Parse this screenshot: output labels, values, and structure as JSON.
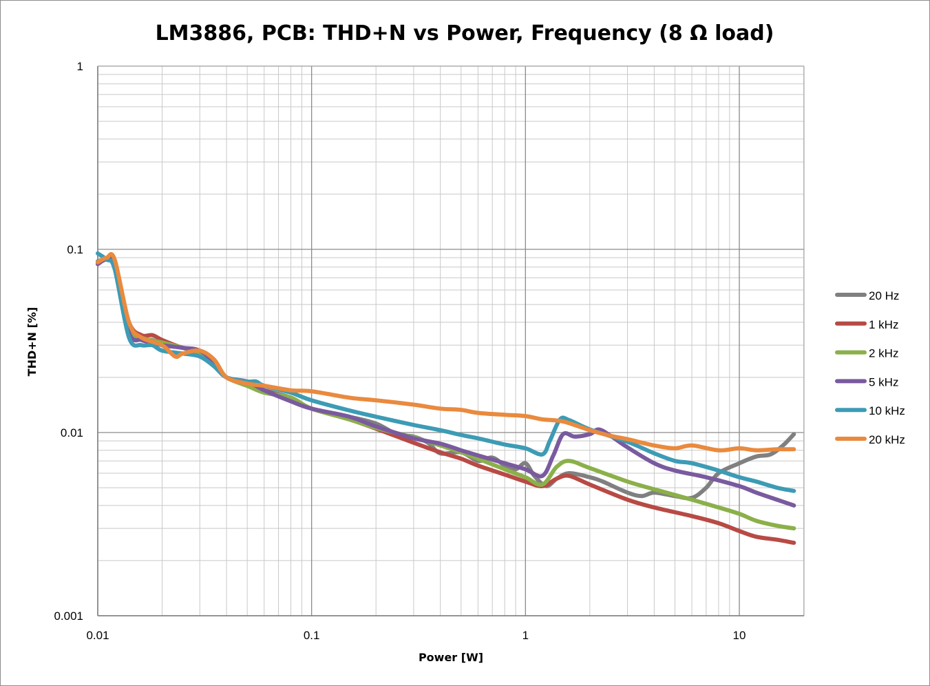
{
  "chart_data": {
    "type": "line",
    "title": "LM3886, PCB: THD+N vs Power, Frequency (8 Ω load)",
    "xlabel": "Power [W]",
    "ylabel": "THD+N [%]",
    "x_scale": "log",
    "y_scale": "log",
    "xlim": [
      0.01,
      20
    ],
    "ylim": [
      0.001,
      1
    ],
    "x_ticks": [
      "0.01",
      "0.1",
      "1",
      "10"
    ],
    "y_ticks": [
      "1",
      "0.1",
      "0.01",
      "0.001"
    ],
    "grid": true,
    "legend_position": "right",
    "series": [
      {
        "name": "20 Hz",
        "color": "#808080",
        "points": [
          [
            0.01,
            0.086
          ],
          [
            0.011,
            0.088
          ],
          [
            0.012,
            0.08
          ],
          [
            0.014,
            0.037
          ],
          [
            0.016,
            0.032
          ],
          [
            0.018,
            0.032
          ],
          [
            0.02,
            0.03
          ],
          [
            0.025,
            0.029
          ],
          [
            0.03,
            0.027
          ],
          [
            0.035,
            0.023
          ],
          [
            0.04,
            0.02
          ],
          [
            0.05,
            0.018
          ],
          [
            0.06,
            0.017
          ],
          [
            0.08,
            0.0155
          ],
          [
            0.1,
            0.0135
          ],
          [
            0.15,
            0.0122
          ],
          [
            0.2,
            0.0112
          ],
          [
            0.25,
            0.0098
          ],
          [
            0.3,
            0.0095
          ],
          [
            0.35,
            0.0088
          ],
          [
            0.4,
            0.0077
          ],
          [
            0.5,
            0.0078
          ],
          [
            0.6,
            0.007
          ],
          [
            0.7,
            0.0073
          ],
          [
            0.8,
            0.0066
          ],
          [
            0.9,
            0.0063
          ],
          [
            1.0,
            0.0068
          ],
          [
            1.1,
            0.0058
          ],
          [
            1.25,
            0.0051
          ],
          [
            1.4,
            0.0056
          ],
          [
            1.6,
            0.006
          ],
          [
            2.0,
            0.0057
          ],
          [
            2.3,
            0.0054
          ],
          [
            3.0,
            0.0047
          ],
          [
            3.5,
            0.0045
          ],
          [
            4.0,
            0.0047
          ],
          [
            5.0,
            0.0045
          ],
          [
            6.0,
            0.0044
          ],
          [
            7.0,
            0.005
          ],
          [
            8.0,
            0.006
          ],
          [
            10.0,
            0.0068
          ],
          [
            12.0,
            0.0074
          ],
          [
            14.0,
            0.0076
          ],
          [
            16.0,
            0.0085
          ],
          [
            18.0,
            0.0098
          ]
        ]
      },
      {
        "name": "1 kHz",
        "color": "#b84a44",
        "points": [
          [
            0.01,
            0.084
          ],
          [
            0.011,
            0.088
          ],
          [
            0.012,
            0.082
          ],
          [
            0.014,
            0.04
          ],
          [
            0.016,
            0.034
          ],
          [
            0.018,
            0.034
          ],
          [
            0.02,
            0.032
          ],
          [
            0.025,
            0.029
          ],
          [
            0.03,
            0.028
          ],
          [
            0.035,
            0.025
          ],
          [
            0.04,
            0.02
          ],
          [
            0.05,
            0.0185
          ],
          [
            0.06,
            0.017
          ],
          [
            0.08,
            0.015
          ],
          [
            0.1,
            0.0135
          ],
          [
            0.15,
            0.0118
          ],
          [
            0.2,
            0.0105
          ],
          [
            0.3,
            0.0088
          ],
          [
            0.4,
            0.0078
          ],
          [
            0.5,
            0.0072
          ],
          [
            0.6,
            0.0066
          ],
          [
            0.8,
            0.0059
          ],
          [
            1.0,
            0.0054
          ],
          [
            1.2,
            0.0051
          ],
          [
            1.4,
            0.0056
          ],
          [
            1.6,
            0.0058
          ],
          [
            2.0,
            0.0052
          ],
          [
            3.0,
            0.0043
          ],
          [
            4.0,
            0.0039
          ],
          [
            6.0,
            0.0035
          ],
          [
            8.0,
            0.0032
          ],
          [
            10.0,
            0.0029
          ],
          [
            12.0,
            0.0027
          ],
          [
            15.0,
            0.0026
          ],
          [
            18.0,
            0.0025
          ]
        ]
      },
      {
        "name": "2 kHz",
        "color": "#8bb04a",
        "points": [
          [
            0.01,
            0.085
          ],
          [
            0.011,
            0.088
          ],
          [
            0.012,
            0.08
          ],
          [
            0.014,
            0.038
          ],
          [
            0.016,
            0.033
          ],
          [
            0.02,
            0.031
          ],
          [
            0.025,
            0.029
          ],
          [
            0.03,
            0.027
          ],
          [
            0.035,
            0.024
          ],
          [
            0.04,
            0.02
          ],
          [
            0.05,
            0.018
          ],
          [
            0.06,
            0.0165
          ],
          [
            0.08,
            0.0155
          ],
          [
            0.1,
            0.0135
          ],
          [
            0.15,
            0.0118
          ],
          [
            0.2,
            0.0106
          ],
          [
            0.3,
            0.0094
          ],
          [
            0.4,
            0.0085
          ],
          [
            0.5,
            0.0078
          ],
          [
            0.6,
            0.0072
          ],
          [
            0.8,
            0.0063
          ],
          [
            1.0,
            0.0057
          ],
          [
            1.2,
            0.0052
          ],
          [
            1.4,
            0.0065
          ],
          [
            1.6,
            0.007
          ],
          [
            2.0,
            0.0064
          ],
          [
            3.0,
            0.0054
          ],
          [
            4.0,
            0.0049
          ],
          [
            6.0,
            0.0043
          ],
          [
            8.0,
            0.0039
          ],
          [
            10.0,
            0.0036
          ],
          [
            12.0,
            0.0033
          ],
          [
            15.0,
            0.0031
          ],
          [
            18.0,
            0.003
          ]
        ]
      },
      {
        "name": "5 kHz",
        "color": "#7a5a9f",
        "points": [
          [
            0.01,
            0.083
          ],
          [
            0.011,
            0.088
          ],
          [
            0.012,
            0.08
          ],
          [
            0.014,
            0.035
          ],
          [
            0.016,
            0.032
          ],
          [
            0.018,
            0.031
          ],
          [
            0.02,
            0.03
          ],
          [
            0.025,
            0.029
          ],
          [
            0.03,
            0.028
          ],
          [
            0.035,
            0.024
          ],
          [
            0.04,
            0.02
          ],
          [
            0.05,
            0.019
          ],
          [
            0.06,
            0.017
          ],
          [
            0.08,
            0.0148
          ],
          [
            0.1,
            0.0135
          ],
          [
            0.15,
            0.0122
          ],
          [
            0.2,
            0.0108
          ],
          [
            0.3,
            0.0093
          ],
          [
            0.4,
            0.0087
          ],
          [
            0.5,
            0.008
          ],
          [
            0.6,
            0.0075
          ],
          [
            0.8,
            0.0068
          ],
          [
            1.0,
            0.0063
          ],
          [
            1.2,
            0.0058
          ],
          [
            1.35,
            0.0075
          ],
          [
            1.5,
            0.0098
          ],
          [
            1.7,
            0.0095
          ],
          [
            2.0,
            0.0098
          ],
          [
            2.2,
            0.0104
          ],
          [
            2.5,
            0.0096
          ],
          [
            3.0,
            0.0083
          ],
          [
            4.0,
            0.0068
          ],
          [
            5.0,
            0.0062
          ],
          [
            7.0,
            0.0057
          ],
          [
            10.0,
            0.0051
          ],
          [
            12.0,
            0.0047
          ],
          [
            15.0,
            0.0043
          ],
          [
            18.0,
            0.004
          ]
        ]
      },
      {
        "name": "10 kHz",
        "color": "#3d9bb5",
        "points": [
          [
            0.01,
            0.095
          ],
          [
            0.011,
            0.088
          ],
          [
            0.012,
            0.078
          ],
          [
            0.014,
            0.033
          ],
          [
            0.016,
            0.03
          ],
          [
            0.018,
            0.03
          ],
          [
            0.02,
            0.028
          ],
          [
            0.025,
            0.027
          ],
          [
            0.03,
            0.026
          ],
          [
            0.035,
            0.023
          ],
          [
            0.04,
            0.02
          ],
          [
            0.05,
            0.019
          ],
          [
            0.055,
            0.019
          ],
          [
            0.06,
            0.018
          ],
          [
            0.08,
            0.0165
          ],
          [
            0.1,
            0.015
          ],
          [
            0.15,
            0.0132
          ],
          [
            0.2,
            0.0122
          ],
          [
            0.3,
            0.011
          ],
          [
            0.4,
            0.0103
          ],
          [
            0.5,
            0.0097
          ],
          [
            0.6,
            0.0093
          ],
          [
            0.8,
            0.0086
          ],
          [
            1.0,
            0.0082
          ],
          [
            1.2,
            0.0076
          ],
          [
            1.3,
            0.009
          ],
          [
            1.45,
            0.0118
          ],
          [
            1.6,
            0.0117
          ],
          [
            2.0,
            0.0104
          ],
          [
            3.0,
            0.0089
          ],
          [
            4.0,
            0.0077
          ],
          [
            5.0,
            0.007
          ],
          [
            6.0,
            0.0068
          ],
          [
            8.0,
            0.0062
          ],
          [
            10.0,
            0.0057
          ],
          [
            12.0,
            0.0054
          ],
          [
            15.0,
            0.005
          ],
          [
            18.0,
            0.0048
          ]
        ]
      },
      {
        "name": "20 kHz",
        "color": "#e98a3e",
        "points": [
          [
            0.01,
            0.085
          ],
          [
            0.011,
            0.09
          ],
          [
            0.012,
            0.088
          ],
          [
            0.014,
            0.04
          ],
          [
            0.016,
            0.033
          ],
          [
            0.02,
            0.03
          ],
          [
            0.023,
            0.026
          ],
          [
            0.025,
            0.027
          ],
          [
            0.03,
            0.028
          ],
          [
            0.035,
            0.025
          ],
          [
            0.04,
            0.02
          ],
          [
            0.05,
            0.0185
          ],
          [
            0.06,
            0.018
          ],
          [
            0.08,
            0.017
          ],
          [
            0.1,
            0.0168
          ],
          [
            0.15,
            0.0155
          ],
          [
            0.2,
            0.015
          ],
          [
            0.3,
            0.0142
          ],
          [
            0.4,
            0.0135
          ],
          [
            0.5,
            0.0133
          ],
          [
            0.6,
            0.0128
          ],
          [
            0.8,
            0.0125
          ],
          [
            1.0,
            0.0123
          ],
          [
            1.2,
            0.0118
          ],
          [
            1.5,
            0.0115
          ],
          [
            2.0,
            0.0103
          ],
          [
            2.5,
            0.0096
          ],
          [
            3.0,
            0.0092
          ],
          [
            4.0,
            0.0085
          ],
          [
            5.0,
            0.0082
          ],
          [
            6.0,
            0.0085
          ],
          [
            8.0,
            0.008
          ],
          [
            10.0,
            0.0082
          ],
          [
            12.0,
            0.008
          ],
          [
            15.0,
            0.0081
          ],
          [
            18.0,
            0.0081
          ]
        ]
      }
    ]
  }
}
